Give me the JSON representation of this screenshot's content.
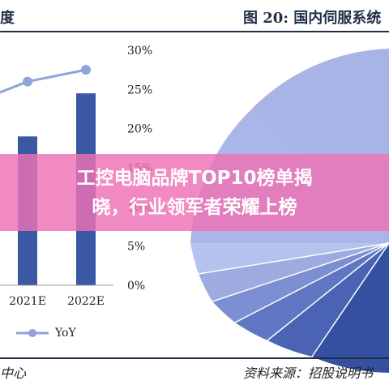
{
  "header": {
    "left_title": "度",
    "right_title": "图 20:  国内伺服系统"
  },
  "footer": {
    "left": "中心",
    "right": "资料来源：招股说明书"
  },
  "banner": {
    "line1": "工控电脑品牌TOP10榜单揭",
    "line2": "晓，行业领军者荣耀上榜"
  },
  "chart_data": {
    "type": "bar",
    "categories": [
      "2021E",
      "2022E"
    ],
    "series": [
      {
        "name": "",
        "values": [
          19,
          24.5
        ]
      },
      {
        "name": "YoY",
        "values": [
          26,
          27.5
        ]
      }
    ],
    "y_ticks": [
      "0%",
      "5%",
      "10%",
      "15%",
      "20%",
      "25%",
      "30%"
    ],
    "ylim": [
      0,
      30
    ],
    "colors": {
      "bars": "#3a58a3",
      "line": "#8fa3d9",
      "pie": "#a9b4e6"
    }
  }
}
